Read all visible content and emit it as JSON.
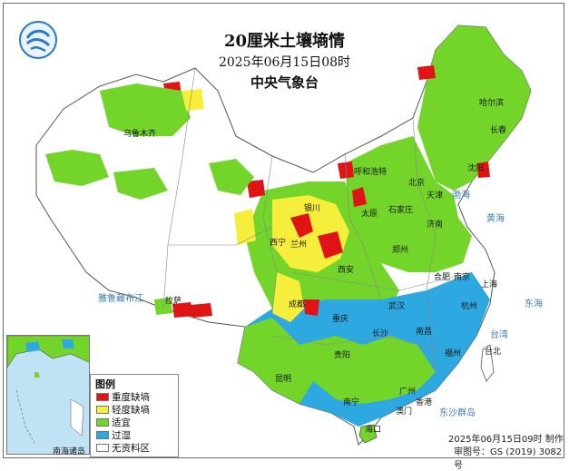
{
  "title": "20厘米土壤墒情",
  "subtitle": "2025年06月15日08时",
  "issuer": "中央气象台",
  "legend": {
    "title": "图例",
    "items": [
      {
        "label": "重度缺墒",
        "color": "#e01414"
      },
      {
        "label": "轻度缺墒",
        "color": "#f5ee3a"
      },
      {
        "label": "适宜",
        "color": "#73d42a"
      },
      {
        "label": "过湿",
        "color": "#2ea8e0"
      },
      {
        "label": "无资料区",
        "color": "#ffffff"
      }
    ]
  },
  "inset_label": "南海诸岛",
  "footer": {
    "made": "2025年06月15日09时 制作",
    "approval": "审图号：GS (2019) 3082号"
  },
  "labels": {
    "cities": [
      "哈尔滨",
      "长春",
      "沈阳",
      "北京",
      "天津",
      "石家庄",
      "济南",
      "太原",
      "呼和浩特",
      "银川",
      "兰州",
      "西宁",
      "西安",
      "郑州",
      "合肥",
      "南京",
      "上海",
      "杭州",
      "武汉",
      "长沙",
      "南昌",
      "福州",
      "成都",
      "重庆",
      "贵阳",
      "昆明",
      "南宁",
      "广州",
      "香港",
      "澳门",
      "海口",
      "台北",
      "乌鲁木齐",
      "拉萨"
    ],
    "seas": [
      "渤海",
      "黄海",
      "东海",
      "台湾",
      "东沙群岛",
      "雅鲁藏布江"
    ]
  },
  "colors": {
    "no_data": "#ffffff",
    "border": "#555555",
    "sea": "#bfe3f5"
  }
}
